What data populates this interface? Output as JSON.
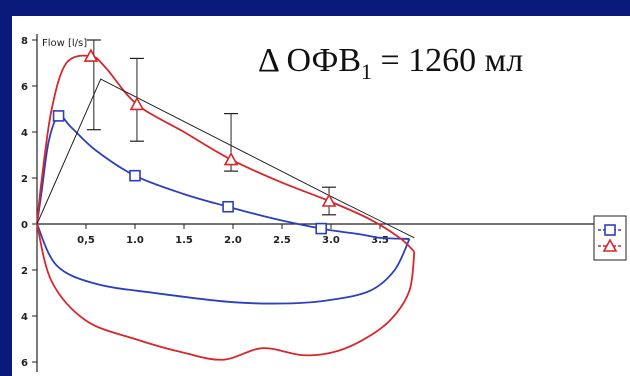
{
  "chart_data": {
    "type": "line",
    "annotation": {
      "prefix": "Δ ОФВ",
      "subscript": "1",
      "suffix": " = 1260 мл"
    },
    "ylabel": "Flow [l/s]",
    "xlim": [
      0,
      3.8
    ],
    "ylim": [
      -6,
      8
    ],
    "x_ticks": [
      0.5,
      1.0,
      1.5,
      2.0,
      2.5,
      3.0,
      3.5
    ],
    "x_tick_labels": [
      "0,5",
      "1.0",
      "1.5",
      "2.0",
      "2.5",
      "3.0",
      "3.5"
    ],
    "y_ticks": [
      8,
      6,
      4,
      2,
      0,
      -2,
      -4,
      -6
    ],
    "y_tick_labels": [
      "8",
      "6",
      "4",
      "2",
      "0",
      "2",
      "4",
      "6"
    ],
    "series": [
      {
        "marker": "square",
        "color": "#2b3fbf",
        "points": [
          [
            0,
            0
          ],
          [
            0.22,
            4.7
          ],
          [
            1.0,
            2.1
          ],
          [
            1.95,
            0.75
          ],
          [
            2.9,
            -0.2
          ],
          [
            3.5,
            -0.6
          ]
        ],
        "markers": [
          [
            0.22,
            4.7
          ],
          [
            1.0,
            2.1
          ],
          [
            1.95,
            0.75
          ],
          [
            2.9,
            -0.2
          ]
        ],
        "expiratory": [
          [
            0,
            0
          ],
          [
            0.05,
            1.5
          ],
          [
            0.12,
            3.6
          ],
          [
            0.22,
            4.7
          ],
          [
            0.35,
            4.2
          ],
          [
            0.6,
            3.2
          ],
          [
            1.0,
            2.1
          ],
          [
            1.5,
            1.3
          ],
          [
            1.95,
            0.75
          ],
          [
            2.4,
            0.25
          ],
          [
            2.9,
            -0.2
          ],
          [
            3.3,
            -0.45
          ],
          [
            3.5,
            -0.6
          ],
          [
            3.8,
            -0.65
          ]
        ],
        "inspiratory": [
          [
            0,
            0
          ],
          [
            0.2,
            -1.8
          ],
          [
            0.6,
            -2.6
          ],
          [
            1.2,
            -3.0
          ],
          [
            2.0,
            -3.4
          ],
          [
            2.6,
            -3.45
          ],
          [
            3.0,
            -3.3
          ],
          [
            3.4,
            -2.9
          ],
          [
            3.65,
            -2.0
          ],
          [
            3.8,
            -0.65
          ]
        ]
      },
      {
        "marker": "triangle",
        "color": "#d8262a",
        "points": [
          [
            0,
            0
          ],
          [
            0.55,
            7.3
          ],
          [
            1.02,
            5.2
          ],
          [
            1.98,
            2.8
          ],
          [
            2.98,
            1.0
          ],
          [
            3.7,
            -0.6
          ]
        ],
        "markers": [
          [
            0.55,
            7.3
          ],
          [
            1.02,
            5.2
          ],
          [
            1.98,
            2.8
          ],
          [
            2.98,
            1.0
          ]
        ],
        "expiratory": [
          [
            0,
            0
          ],
          [
            0.05,
            2.0
          ],
          [
            0.15,
            5.0
          ],
          [
            0.3,
            7.0
          ],
          [
            0.55,
            7.3
          ],
          [
            0.7,
            6.8
          ],
          [
            1.02,
            5.2
          ],
          [
            1.5,
            4.0
          ],
          [
            1.98,
            2.8
          ],
          [
            2.5,
            1.8
          ],
          [
            2.98,
            1.0
          ],
          [
            3.4,
            0.2
          ],
          [
            3.7,
            -0.6
          ],
          [
            3.85,
            -1.2
          ]
        ],
        "inspiratory": [
          [
            0,
            0
          ],
          [
            0.15,
            -2.5
          ],
          [
            0.5,
            -4.2
          ],
          [
            1.0,
            -5.0
          ],
          [
            1.5,
            -5.6
          ],
          [
            1.9,
            -5.9
          ],
          [
            2.3,
            -5.4
          ],
          [
            2.7,
            -5.7
          ],
          [
            3.0,
            -5.6
          ],
          [
            3.3,
            -5.1
          ],
          [
            3.6,
            -4.2
          ],
          [
            3.8,
            -2.9
          ],
          [
            3.85,
            -1.2
          ]
        ]
      }
    ],
    "reference_line": {
      "color": "#222222",
      "points": [
        [
          0,
          0
        ],
        [
          0.65,
          6.3
        ],
        [
          3.0,
          1.2
        ],
        [
          3.85,
          -0.6
        ]
      ]
    },
    "error_bars": [
      {
        "x": 0.58,
        "y": 6.2,
        "low": 4.1,
        "high": 8.0
      },
      {
        "x": 1.02,
        "y": 5.1,
        "low": 3.6,
        "high": 7.2
      },
      {
        "x": 1.98,
        "y": 3.3,
        "low": 2.3,
        "high": 4.8
      },
      {
        "x": 2.98,
        "y": 1.0,
        "low": 0.4,
        "high": 1.6
      }
    ],
    "grid": false,
    "legend": "right"
  }
}
